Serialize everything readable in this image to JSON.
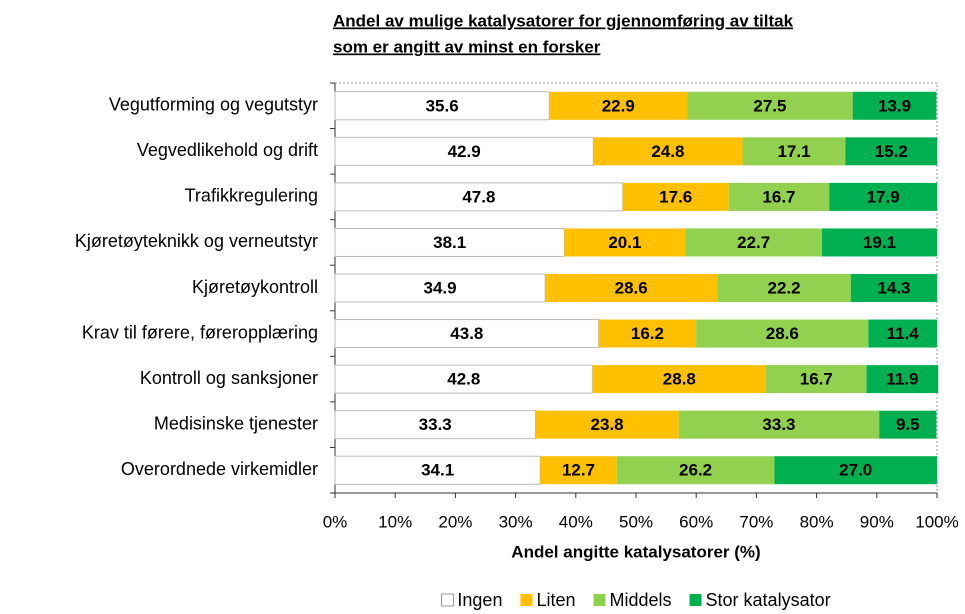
{
  "chart_data": {
    "type": "stacked_barh",
    "title": [
      "Andel av mulige katalysatorer for gjennomføring av tiltak",
      "som er angitt av minst en forsker"
    ],
    "categories": [
      "Vegutforming og vegutstyr",
      "Vegvedlikehold og drift",
      "Trafikkregulering",
      "Kjøretøyteknikk og verneutstyr",
      "Kjøretøykontroll",
      "Krav til førere, føreropplæring",
      "Kontroll og sanksjoner",
      "Medisinske tjenester",
      "Overordnede virkemidler"
    ],
    "series": [
      {
        "name": "Ingen",
        "color": "#ffffff",
        "values": [
          35.6,
          42.9,
          47.8,
          38.1,
          34.9,
          43.8,
          42.8,
          33.3,
          34.1
        ]
      },
      {
        "name": "Liten",
        "color": "#ffc000",
        "values": [
          22.9,
          24.8,
          17.6,
          20.1,
          28.6,
          16.2,
          28.8,
          23.8,
          12.7
        ]
      },
      {
        "name": "Middels",
        "color": "#92d050",
        "values": [
          27.5,
          17.1,
          16.7,
          22.7,
          22.2,
          28.6,
          16.7,
          33.3,
          26.2
        ]
      },
      {
        "name": "Stor katalysator",
        "color": "#00b050",
        "values": [
          13.9,
          15.2,
          17.9,
          19.1,
          14.3,
          11.4,
          11.9,
          9.5,
          27.0
        ],
        "value_labels": [
          "13.9",
          "15.2",
          "17.9",
          "19.1",
          "14.3",
          "11.4",
          "11.9",
          "9.5",
          "27.0"
        ]
      }
    ],
    "xlabel": "Andel angitte katalysatorer (%)",
    "xlim": [
      0,
      100
    ],
    "xticks": [
      {
        "value": 0,
        "label": "0%"
      },
      {
        "value": 10,
        "label": "10%"
      },
      {
        "value": 20,
        "label": "20%"
      },
      {
        "value": 30,
        "label": "30%"
      },
      {
        "value": 40,
        "label": "40%"
      },
      {
        "value": 50,
        "label": "50%"
      },
      {
        "value": 60,
        "label": "60%"
      },
      {
        "value": 70,
        "label": "70%"
      },
      {
        "value": 80,
        "label": "80%"
      },
      {
        "value": 90,
        "label": "90%"
      },
      {
        "value": 100,
        "label": "100%"
      }
    ],
    "legend": "bottom"
  }
}
